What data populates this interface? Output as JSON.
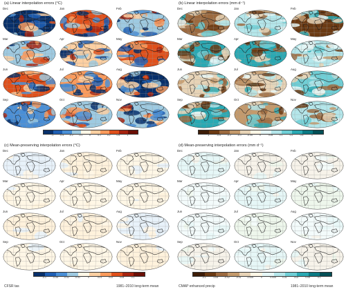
{
  "months": [
    "Dec",
    "Jan",
    "Feb",
    "Mar",
    "Apr",
    "May",
    "Jun",
    "Jul",
    "Aug",
    "Sep",
    "Oct",
    "Nov"
  ],
  "panels": [
    {
      "id": "a",
      "title": "(a) Linear interpolation errors (°C)",
      "colorbar": "temp"
    },
    {
      "id": "b",
      "title": "(b) Linear interpolation errors (mm d⁻¹)",
      "colorbar": "precip"
    },
    {
      "id": "c",
      "title": "(c) Mean-preserving interpolation errors (°C)",
      "colorbar": "temp_small"
    },
    {
      "id": "d",
      "title": "(d) Mean-preserving interpolation errors (mm d⁻¹)",
      "colorbar": "precip_small"
    }
  ],
  "colorbars": {
    "temp": {
      "ticks": [
        "-1",
        "-0.5",
        "-0.2",
        "-0.1",
        "0",
        "0.1",
        "0.2",
        "0.5",
        "1"
      ],
      "colors": [
        "#08306b",
        "#1f5fb4",
        "#4a8fd6",
        "#9ecae1",
        "#fff7e6",
        "#fdd0a2",
        "#fc9b5c",
        "#e0501b",
        "#a6230f",
        "#6b0f06"
      ]
    },
    "precip": {
      "ticks": [
        "-1",
        "-0.5",
        "-0.2",
        "-0.1",
        "-0.05",
        "0",
        "0.05",
        "0.1",
        "0.2",
        "0.5",
        "1"
      ],
      "colors": [
        "#3d1c07",
        "#6b3a13",
        "#9c6a3f",
        "#c49a6c",
        "#e7d3b6",
        "#fff7e6",
        "#e6f7f7",
        "#b4e6ea",
        "#6fcfd6",
        "#2aa9b3",
        "#0b7a84",
        "#044f56"
      ]
    },
    "temp_small": {
      "ticks": [
        "-0.1",
        "-0.05",
        "-0.02",
        "-0.01",
        "0",
        "0.01",
        "0.02",
        "0.05",
        "0.1"
      ],
      "colors": [
        "#08306b",
        "#1f5fb4",
        "#4a8fd6",
        "#9ecae1",
        "#fff7e6",
        "#fdd0a2",
        "#fc9b5c",
        "#e0501b",
        "#a6230f",
        "#6b0f06"
      ]
    },
    "precip_small": {
      "ticks": [
        "-0.1",
        "-0.05",
        "-0.02",
        "-0.01",
        "-0.005",
        "0",
        "0.005",
        "0.01",
        "0.02",
        "0.05",
        "0.1"
      ],
      "colors": [
        "#3d1c07",
        "#6b3a13",
        "#9c6a3f",
        "#c49a6c",
        "#e7d3b6",
        "#fff7e6",
        "#e6f7f7",
        "#b4e6ea",
        "#6fcfd6",
        "#2aa9b3",
        "#0b7a84",
        "#044f56"
      ]
    }
  },
  "footer": {
    "left_dataset": "CFSR tas",
    "left_period": "1981–2010 long-term mean",
    "right_dataset": "CMAP enhanced precip",
    "right_period": "1981–2010 long-term mean"
  },
  "map_palettes": {
    "a": [
      "#08306b",
      "#1f5fb4",
      "#4a8fd6",
      "#9ecae1",
      "#fdd0a2",
      "#fc9b5c",
      "#e0501b",
      "#a6230f"
    ],
    "b": [
      "#6b3a13",
      "#9c6a3f",
      "#c49a6c",
      "#e7d3b6",
      "#e6f7f7",
      "#b4e6ea",
      "#6fcfd6",
      "#2aa9b3"
    ],
    "c": [
      "#fff7e6",
      "#fff7e6",
      "#fff2dc",
      "#e8f2fa"
    ],
    "d": [
      "#f3fbfb",
      "#e6f7f7",
      "#eef7ec",
      "#f7f3ea"
    ]
  }
}
